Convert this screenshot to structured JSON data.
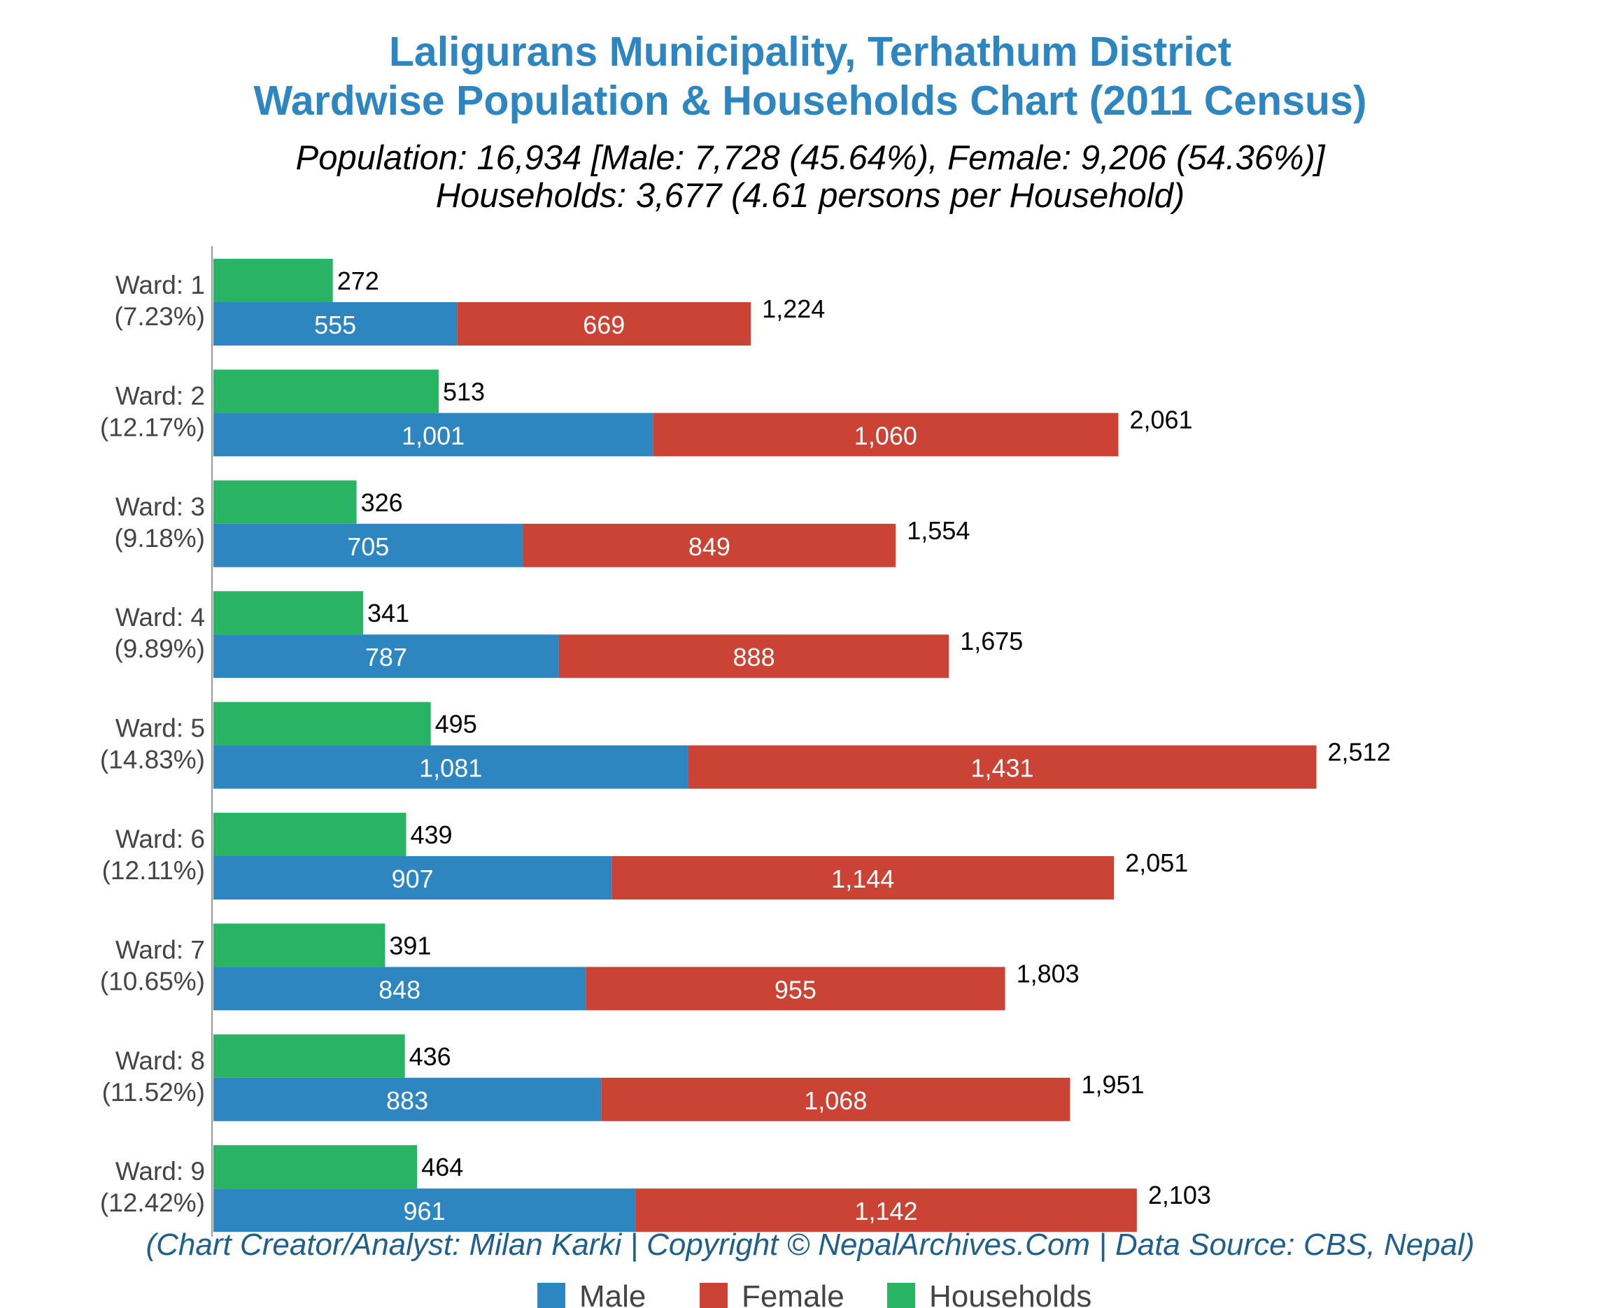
{
  "chart_data": {
    "type": "bar",
    "orientation": "horizontal",
    "title": "Laligurans Municipality, Terhathum District",
    "title_line2": "Wardwise Population & Households Chart (2011 Census)",
    "subtitle_line1": "Population: 16,934 [Male: 7,728 (45.64%), Female: 9,206 (54.36%)]",
    "subtitle_line2": "Households: 3,677 (4.61 persons per Household)",
    "credit": "(Chart Creator/Analyst: Milan Karki | Copyright © NepalArchives.Com | Data Source: CBS, Nepal)",
    "categories": [
      "Ward: 1",
      "Ward: 2",
      "Ward: 3",
      "Ward: 4",
      "Ward: 5",
      "Ward: 6",
      "Ward: 7",
      "Ward: 8",
      "Ward: 9"
    ],
    "category_percents": [
      "(7.23%)",
      "(12.17%)",
      "(9.18%)",
      "(9.89%)",
      "(14.83%)",
      "(12.11%)",
      "(10.65%)",
      "(11.52%)",
      "(12.42%)"
    ],
    "series": [
      {
        "name": "Male",
        "color": "#2e86c1",
        "values": [
          555,
          1001,
          705,
          787,
          1081,
          907,
          848,
          883,
          961
        ],
        "labels": [
          "555",
          "1,001",
          "705",
          "787",
          "1,081",
          "907",
          "848",
          "883",
          "961"
        ]
      },
      {
        "name": "Female",
        "color": "#cb4335",
        "values": [
          669,
          1060,
          849,
          888,
          1431,
          1144,
          955,
          1068,
          1142
        ],
        "labels": [
          "669",
          "1,060",
          "849",
          "888",
          "1,431",
          "1,144",
          "955",
          "1,068",
          "1,142"
        ]
      },
      {
        "name": "Households",
        "color": "#28b463",
        "values": [
          272,
          513,
          326,
          341,
          495,
          439,
          391,
          436,
          464
        ],
        "labels": [
          "272",
          "513",
          "326",
          "341",
          "495",
          "439",
          "391",
          "436",
          "464"
        ]
      }
    ],
    "totals": [
      "1,224",
      "2,061",
      "1,554",
      "1,675",
      "2,512",
      "2,051",
      "1,803",
      "1,951",
      "2,103"
    ],
    "legend_position": "bottom",
    "grid": false
  }
}
